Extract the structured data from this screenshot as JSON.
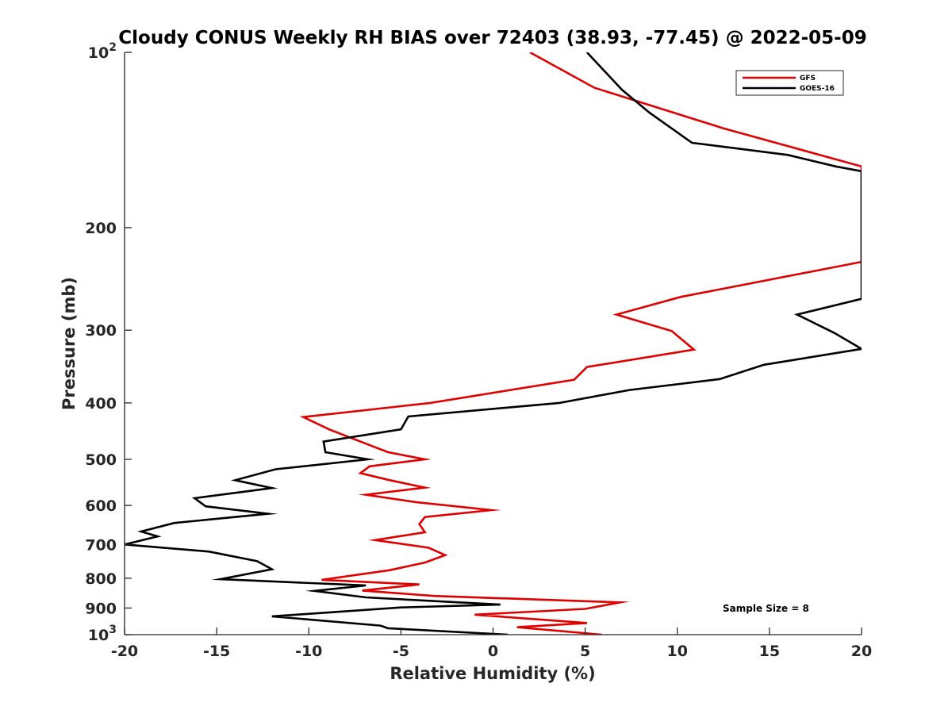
{
  "chart_data": {
    "type": "line",
    "title": "Cloudy CONUS Weekly RH BIAS over 72403 (38.93, -77.45) @ 2022-05-09",
    "xlabel": "Relative Humidity (%)",
    "ylabel": "Pressure (mb)",
    "xlim": [
      -20,
      20
    ],
    "ylim": [
      100,
      1000
    ],
    "y_scale": "log",
    "y_reversed": true,
    "grid": false,
    "legend_position": "top-right",
    "x_ticks": [
      -20,
      -15,
      -10,
      -5,
      0,
      5,
      10,
      15,
      20
    ],
    "y_ticks": [
      {
        "value": 100,
        "base": "10",
        "exp": "2"
      },
      {
        "value": 200,
        "label": "200"
      },
      {
        "value": 300,
        "label": "300"
      },
      {
        "value": 400,
        "label": "400"
      },
      {
        "value": 500,
        "label": "500"
      },
      {
        "value": 600,
        "label": "600"
      },
      {
        "value": 700,
        "label": "700"
      },
      {
        "value": 800,
        "label": "800"
      },
      {
        "value": 900,
        "label": "900"
      },
      {
        "value": 1000,
        "base": "10",
        "exp": "3"
      }
    ],
    "annotation": "Sample Size = 8",
    "series": [
      {
        "name": "GFS",
        "color": "#e00000",
        "points": [
          [
            2.0,
            100
          ],
          [
            5.5,
            115
          ],
          [
            12.5,
            135
          ],
          [
            20.0,
            157
          ],
          [
            20.0,
            229
          ],
          [
            10.2,
            263
          ],
          [
            6.7,
            282
          ],
          [
            9.7,
            301
          ],
          [
            10.9,
            324
          ],
          [
            5.1,
            347
          ],
          [
            4.4,
            365
          ],
          [
            -3.4,
            400
          ],
          [
            -10.3,
            423
          ],
          [
            -8.9,
            444
          ],
          [
            -7.2,
            466
          ],
          [
            -5.7,
            486
          ],
          [
            -3.7,
            500
          ],
          [
            -6.7,
            514
          ],
          [
            -7.2,
            528
          ],
          [
            -5.6,
            543
          ],
          [
            -3.7,
            559
          ],
          [
            -6.9,
            575
          ],
          [
            -4.2,
            592
          ],
          [
            -0.1,
            611
          ],
          [
            -3.7,
            628
          ],
          [
            -4.0,
            646
          ],
          [
            -3.7,
            667
          ],
          [
            -6.4,
            688
          ],
          [
            -3.5,
            709
          ],
          [
            -2.6,
            730
          ],
          [
            -3.7,
            752
          ],
          [
            -5.6,
            775
          ],
          [
            -9.3,
            805
          ],
          [
            -4.0,
            820
          ],
          [
            -7.1,
            840
          ],
          [
            -3.2,
            858
          ],
          [
            6.9,
            880
          ],
          [
            5.0,
            903
          ],
          [
            -1.0,
            924
          ],
          [
            5.1,
            955
          ],
          [
            1.3,
            971
          ],
          [
            5.9,
            1000
          ]
        ]
      },
      {
        "name": "GOES-16",
        "color": "#000000",
        "points": [
          [
            5.1,
            100
          ],
          [
            7.0,
            116
          ],
          [
            8.5,
            127
          ],
          [
            10.8,
            143
          ],
          [
            16.0,
            150
          ],
          [
            18.6,
            157
          ],
          [
            20.0,
            160
          ],
          [
            20.0,
            265
          ],
          [
            16.5,
            282
          ],
          [
            18.5,
            303
          ],
          [
            20.0,
            323
          ],
          [
            14.7,
            344
          ],
          [
            12.3,
            364
          ],
          [
            7.4,
            380
          ],
          [
            3.6,
            400
          ],
          [
            -4.6,
            422
          ],
          [
            -5.0,
            444
          ],
          [
            -9.2,
            466
          ],
          [
            -9.1,
            486
          ],
          [
            -6.8,
            500
          ],
          [
            -11.8,
            520
          ],
          [
            -14.0,
            543
          ],
          [
            -12.0,
            560
          ],
          [
            -16.2,
            583
          ],
          [
            -15.6,
            602
          ],
          [
            -12.2,
            620
          ],
          [
            -17.3,
            643
          ],
          [
            -19.1,
            665
          ],
          [
            -18.2,
            678
          ],
          [
            -20.0,
            700
          ],
          [
            -15.4,
            720
          ],
          [
            -12.8,
            748
          ],
          [
            -12.0,
            772
          ],
          [
            -14.8,
            803
          ],
          [
            -6.9,
            823
          ],
          [
            -9.7,
            841
          ],
          [
            -6.9,
            863
          ],
          [
            0.4,
            888
          ],
          [
            -5.0,
            898
          ],
          [
            -12.0,
            930
          ],
          [
            -6.1,
            965
          ],
          [
            -5.7,
            975
          ],
          [
            0.8,
            1000
          ]
        ]
      }
    ]
  }
}
